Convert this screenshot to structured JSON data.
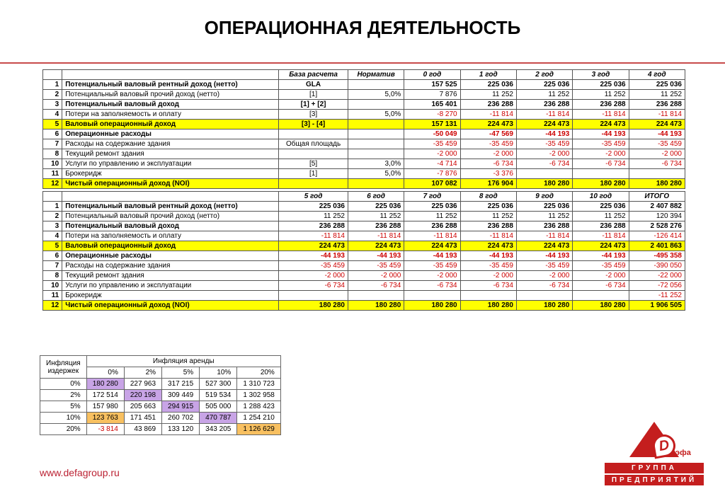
{
  "title": "ОПЕРАЦИОННАЯ ДЕЯТЕЛЬНОСТЬ",
  "footer_url": "www.defagroup.ru",
  "logo": {
    "letter": "D",
    "suffix": "эфа",
    "line1": "ГРУППА",
    "line2": "ПРЕДПРИЯТИЙ"
  },
  "colors": {
    "accent": "#c84b4b",
    "highlight_yellow": "#ffff00",
    "highlight_purple": "#c8a4e6",
    "highlight_orange": "#f8c060",
    "negative": "#cc0000",
    "text": "#000000",
    "stripe": "#b38f8f"
  },
  "main_table": {
    "block1": {
      "headers": [
        "",
        "",
        "База расчета",
        "Норматив",
        "0 год",
        "1 год",
        "2 год",
        "3 год",
        "4 год"
      ],
      "rows": [
        {
          "n": "1",
          "label": "Потенциальный валовый рентный доход (нетто)",
          "calc": "GLA",
          "norm": "",
          "y": [
            "157 525",
            "225 036",
            "225 036",
            "225 036",
            "225 036"
          ],
          "bold": true
        },
        {
          "n": "2",
          "label": "Потенциальный валовый прочий доход (нетто)",
          "calc": "[1]",
          "norm": "5,0%",
          "y": [
            "7 876",
            "11 252",
            "11 252",
            "11 252",
            "11 252"
          ]
        },
        {
          "n": "3",
          "label": "Потенциальный валовый доход",
          "calc": "[1] + [2]",
          "norm": "",
          "y": [
            "165 401",
            "236 288",
            "236 288",
            "236 288",
            "236 288"
          ],
          "bold": true
        },
        {
          "n": "4",
          "label": "Потери на заполняемость и оплату",
          "calc": "[3]",
          "norm": "5,0%",
          "y": [
            "-8 270",
            "-11 814",
            "-11 814",
            "-11 814",
            "-11 814"
          ],
          "neg": true
        },
        {
          "n": "5",
          "label": "Валовый операционный доход",
          "calc": "[3] - [4]",
          "norm": "",
          "y": [
            "157 131",
            "224 473",
            "224 473",
            "224 473",
            "224 473"
          ],
          "bold": true,
          "yellow": true
        },
        {
          "n": "6",
          "label": "Операционные расходы",
          "calc": "",
          "norm": "",
          "y": [
            "-50 049",
            "-47 569",
            "-44 193",
            "-44 193",
            "-44 193"
          ],
          "bold": true,
          "neg": true
        },
        {
          "n": "7",
          "label": "    Расходы на содержание здания",
          "calc": "Общая площадь",
          "norm": "",
          "y": [
            "-35 459",
            "-35 459",
            "-35 459",
            "-35 459",
            "-35 459"
          ],
          "neg": true
        },
        {
          "n": "8",
          "label": "    Текущий ремонт здания",
          "calc": "",
          "norm": "",
          "y": [
            "-2 000",
            "-2 000",
            "-2 000",
            "-2 000",
            "-2 000"
          ],
          "neg": true
        },
        {
          "n": "10",
          "label": "    Услуги по управлению и эксплуатации",
          "calc": "[5]",
          "norm": "3,0%",
          "y": [
            "-4 714",
            "-6 734",
            "-6 734",
            "-6 734",
            "-6 734"
          ],
          "neg": true
        },
        {
          "n": "11",
          "label": "    Брокеридж",
          "calc": "[1]",
          "norm": "5,0%",
          "y": [
            "-7 876",
            "-3 376",
            "",
            "",
            ""
          ],
          "neg": true
        },
        {
          "n": "12",
          "label": "Чистый операционный доход (NOI)",
          "calc": "",
          "norm": "",
          "y": [
            "107 082",
            "176 904",
            "180 280",
            "180 280",
            "180 280"
          ],
          "bold": true,
          "yellow": true
        }
      ]
    },
    "block2": {
      "headers": [
        "",
        "",
        "5 год",
        "6 год",
        "7 год",
        "8 год",
        "9 год",
        "10 год",
        "ИТОГО"
      ],
      "rows": [
        {
          "n": "1",
          "label": "Потенциальный валовый рентный доход (нетто)",
          "y": [
            "225 036",
            "225 036",
            "225 036",
            "225 036",
            "225 036",
            "225 036",
            "2 407 882"
          ],
          "bold": true
        },
        {
          "n": "2",
          "label": "Потенциальный валовый прочий доход (нетто)",
          "y": [
            "11 252",
            "11 252",
            "11 252",
            "11 252",
            "11 252",
            "11 252",
            "120 394"
          ]
        },
        {
          "n": "3",
          "label": "Потенциальный валовый доход",
          "y": [
            "236 288",
            "236 288",
            "236 288",
            "236 288",
            "236 288",
            "236 288",
            "2 528 276"
          ],
          "bold": true
        },
        {
          "n": "4",
          "label": "Потери на заполняемость и оплату",
          "y": [
            "-11 814",
            "-11 814",
            "-11 814",
            "-11 814",
            "-11 814",
            "-11 814",
            "-126 414"
          ],
          "neg": true
        },
        {
          "n": "5",
          "label": "Валовый операционный доход",
          "y": [
            "224 473",
            "224 473",
            "224 473",
            "224 473",
            "224 473",
            "224 473",
            "2 401 863"
          ],
          "bold": true,
          "yellow": true
        },
        {
          "n": "6",
          "label": "Операционные расходы",
          "y": [
            "-44 193",
            "-44 193",
            "-44 193",
            "-44 193",
            "-44 193",
            "-44 193",
            "-495 358"
          ],
          "bold": true,
          "neg": true
        },
        {
          "n": "7",
          "label": "    Расходы на содержание здания",
          "y": [
            "-35 459",
            "-35 459",
            "-35 459",
            "-35 459",
            "-35 459",
            "-35 459",
            "-390 050"
          ],
          "neg": true
        },
        {
          "n": "8",
          "label": "    Текущий ремонт здания",
          "y": [
            "-2 000",
            "-2 000",
            "-2 000",
            "-2 000",
            "-2 000",
            "-2 000",
            "-22 000"
          ],
          "neg": true
        },
        {
          "n": "10",
          "label": "    Услуги по управлению и эксплуатации",
          "y": [
            "-6 734",
            "-6 734",
            "-6 734",
            "-6 734",
            "-6 734",
            "-6 734",
            "-72 056"
          ],
          "neg": true
        },
        {
          "n": "11",
          "label": "    Брокеридж",
          "y": [
            "",
            "",
            "",
            "",
            "",
            "",
            "-11 252"
          ],
          "neg": true
        },
        {
          "n": "12",
          "label": "Чистый операционный доход (NOI)",
          "y": [
            "180 280",
            "180 280",
            "180 280",
            "180 280",
            "180 280",
            "180 280",
            "1 906 505"
          ],
          "bold": true,
          "yellow": true
        }
      ]
    }
  },
  "small_table": {
    "corner_top": "Инфляция",
    "corner_bottom": "издержек",
    "col_header_center": "Инфляция аренды",
    "cols": [
      "0%",
      "2%",
      "5%",
      "10%",
      "20%"
    ],
    "rows_labels": [
      "0%",
      "2%",
      "5%",
      "10%",
      "20%"
    ],
    "cells": [
      [
        "180 280",
        "227 963",
        "317 215",
        "527 300",
        "1 310 723"
      ],
      [
        "172 514",
        "220 198",
        "309 449",
        "519 534",
        "1 302 958"
      ],
      [
        "157 980",
        "205 663",
        "294 915",
        "505 000",
        "1 288 423"
      ],
      [
        "123 763",
        "171 451",
        "260 702",
        "470 787",
        "1 254 210"
      ],
      [
        "-3 814",
        "43 869",
        "133 120",
        "343 205",
        "1 126 629"
      ]
    ],
    "hl": {
      "purple": [
        [
          0,
          0
        ],
        [
          1,
          1
        ],
        [
          2,
          2
        ],
        [
          3,
          3
        ]
      ],
      "orange": [
        [
          3,
          0
        ],
        [
          4,
          4
        ]
      ],
      "neg": [
        [
          4,
          0
        ]
      ]
    }
  }
}
